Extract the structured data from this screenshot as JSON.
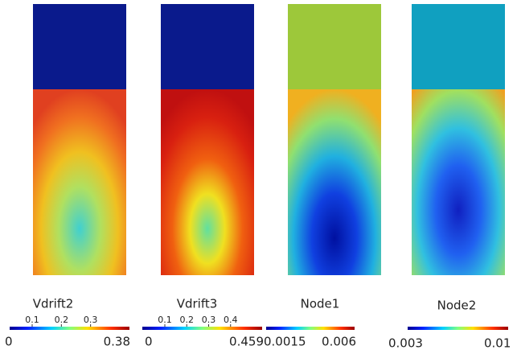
{
  "panels": [
    {
      "label": "Vdrift2",
      "scale": {
        "min": "0",
        "max": "0.38",
        "ticks": [
          "0.1",
          "0.2",
          "0.3"
        ]
      }
    },
    {
      "label": "Vdrift3",
      "scale": {
        "min": "0",
        "max": "0.459",
        "ticks": [
          "0.1",
          "0.2",
          "0.3",
          "0.4"
        ]
      }
    },
    {
      "label": "Node1",
      "scale": {
        "min": "0.0015",
        "max": "0.006",
        "ticks": []
      }
    },
    {
      "label": "Node2",
      "scale": {
        "min": "0.003",
        "max": "0.01",
        "ticks": []
      }
    }
  ]
}
